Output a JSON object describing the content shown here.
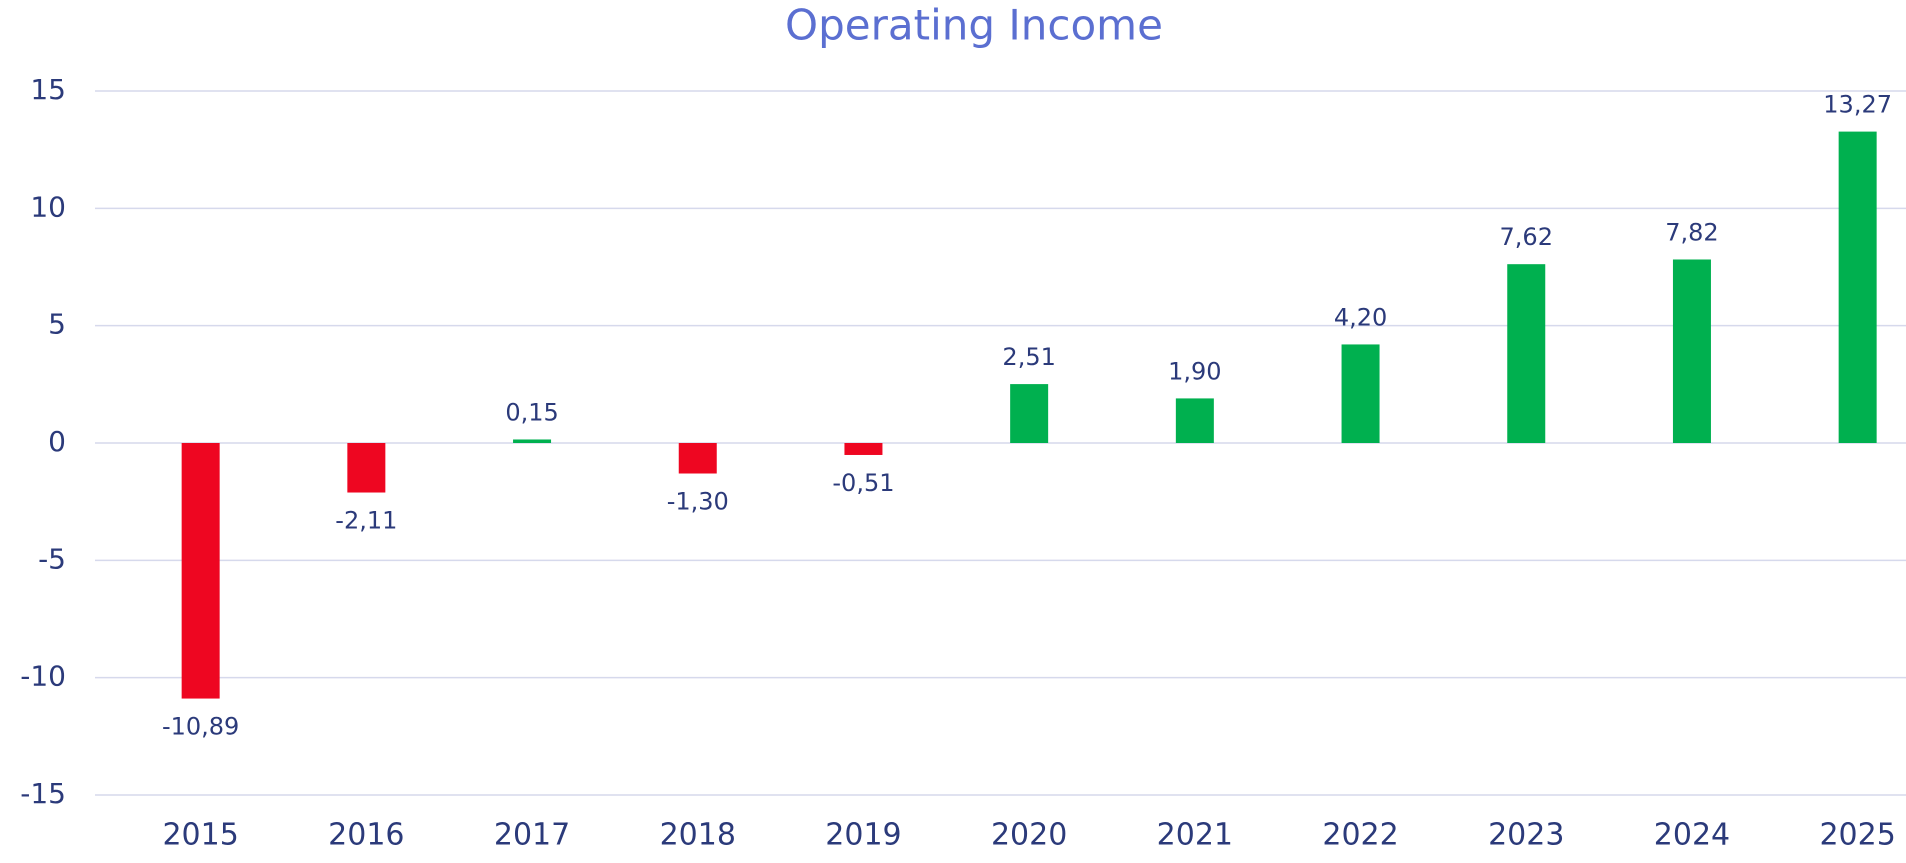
{
  "chart_data": {
    "type": "bar",
    "title": "Operating Income",
    "categories": [
      "2015",
      "2016",
      "2017",
      "2018",
      "2019",
      "2020",
      "2021",
      "2022",
      "2023",
      "2024",
      "2025"
    ],
    "values": [
      -10.89,
      -2.11,
      0.15,
      -1.3,
      -0.51,
      2.51,
      1.9,
      4.2,
      7.62,
      7.82,
      13.27
    ],
    "value_labels": [
      "-10,89",
      "-2,11",
      "0,15",
      "-1,30",
      "-0,51",
      "2,51",
      "1,90",
      "4,20",
      "7,62",
      "7,82",
      "13,27"
    ],
    "color_positive": "#00b04f",
    "color_negative": "#ee0621",
    "ylim": [
      -15,
      15
    ],
    "yticks": [
      -15,
      -10,
      -5,
      0,
      5,
      10,
      15
    ],
    "grid": true
  }
}
